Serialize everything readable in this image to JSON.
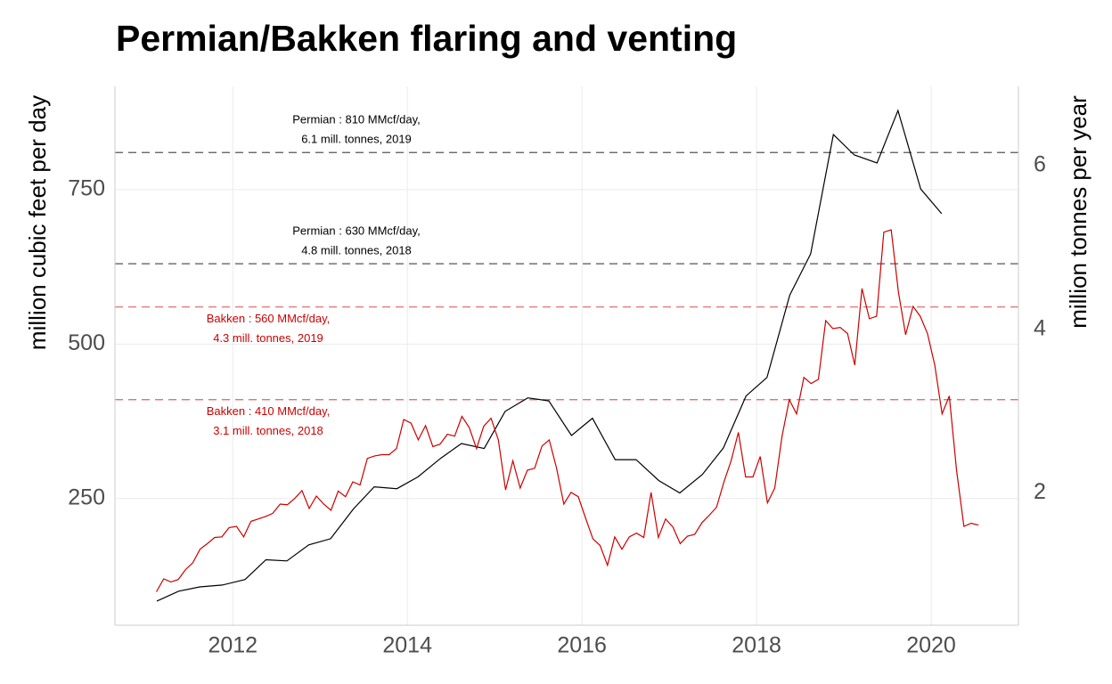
{
  "chart_data": {
    "type": "line",
    "title": "Permian/Bakken flaring and venting",
    "y_label": "million cubic feet per day",
    "y2_label": "million tonnes per year",
    "xlim": [
      2010.65,
      2021.0
    ],
    "xticks": [
      2012,
      2014,
      2016,
      2018,
      2020
    ],
    "ylim": [
      45,
      917
    ],
    "yticks": [
      250,
      500,
      750
    ],
    "y2lim": [
      0.38,
      6.97
    ],
    "y2ticks": [
      2,
      4,
      6
    ],
    "grid": true,
    "hlines": [
      {
        "value": 810,
        "color": "#555555",
        "label": [
          "Permian : 810 MMcf/day,",
          "6.1 mill. tonnes, 2019"
        ]
      },
      {
        "value": 630,
        "color": "#555555",
        "label": [
          "Permian : 630 MMcf/day,",
          "4.8 mill. tonnes, 2018"
        ]
      },
      {
        "value": 560,
        "color": "#e06060",
        "label": [
          "Bakken : 560 MMcf/day,",
          "4.3 mill. tonnes, 2019"
        ]
      },
      {
        "value": 410,
        "color": "#e06060",
        "label": [
          "Bakken : 410 MMcf/day,",
          "3.1 mill. tonnes, 2018"
        ]
      }
    ],
    "series": [
      {
        "color": "#000000",
        "x": [
          2011.13,
          2011.38,
          2011.62,
          2011.88,
          2012.14,
          2012.38,
          2012.62,
          2012.87,
          2013.12,
          2013.38,
          2013.62,
          2013.88,
          2014.12,
          2014.38,
          2014.62,
          2014.88,
          2015.12,
          2015.38,
          2015.62,
          2015.88,
          2016.12,
          2016.38,
          2016.62,
          2016.88,
          2017.12,
          2017.38,
          2017.62,
          2017.88,
          2018.12,
          2018.38,
          2018.62,
          2018.88,
          2019.12,
          2019.38,
          2019.62,
          2019.88,
          2020.12
        ],
        "values": [
          84,
          100,
          107,
          110,
          119,
          151,
          149,
          175,
          185,
          233,
          269,
          266,
          285,
          315,
          339,
          331,
          391,
          413,
          408,
          352,
          380,
          313,
          313,
          279,
          259,
          289,
          332,
          416,
          446,
          579,
          646,
          839,
          806,
          793,
          878,
          751,
          711
        ]
      },
      {
        "color": "#cc0000",
        "x": [
          2011.125,
          2011.208,
          2011.292,
          2011.375,
          2011.458,
          2011.542,
          2011.625,
          2011.708,
          2011.792,
          2011.875,
          2011.958,
          2012.042,
          2012.125,
          2012.208,
          2012.292,
          2012.375,
          2012.458,
          2012.542,
          2012.625,
          2012.708,
          2012.792,
          2012.875,
          2012.958,
          2013.042,
          2013.125,
          2013.208,
          2013.292,
          2013.375,
          2013.458,
          2013.542,
          2013.625,
          2013.708,
          2013.792,
          2013.875,
          2013.958,
          2014.042,
          2014.125,
          2014.208,
          2014.292,
          2014.375,
          2014.458,
          2014.542,
          2014.625,
          2014.708,
          2014.792,
          2014.875,
          2014.958,
          2015.042,
          2015.125,
          2015.208,
          2015.292,
          2015.375,
          2015.458,
          2015.542,
          2015.625,
          2015.708,
          2015.792,
          2015.875,
          2015.958,
          2016.042,
          2016.125,
          2016.208,
          2016.292,
          2016.375,
          2016.458,
          2016.542,
          2016.625,
          2016.708,
          2016.792,
          2016.875,
          2016.958,
          2017.042,
          2017.125,
          2017.208,
          2017.292,
          2017.375,
          2017.458,
          2017.542,
          2017.625,
          2017.708,
          2017.792,
          2017.875,
          2017.958,
          2018.042,
          2018.125,
          2018.208,
          2018.292,
          2018.375,
          2018.458,
          2018.542,
          2018.625,
          2018.708,
          2018.792,
          2018.875,
          2018.958,
          2019.042,
          2019.125,
          2019.208,
          2019.292,
          2019.375,
          2019.458,
          2019.542,
          2019.625,
          2019.708,
          2019.792,
          2019.875,
          2019.958,
          2020.042,
          2020.125,
          2020.208,
          2020.292,
          2020.375,
          2020.458,
          2020.542
        ],
        "values": [
          99,
          120,
          115,
          119,
          135,
          146,
          168,
          177,
          187,
          188,
          203,
          205,
          188,
          213,
          217,
          221,
          226,
          241,
          240,
          250,
          263,
          234,
          254,
          241,
          231,
          262,
          253,
          277,
          272,
          315,
          319,
          321,
          321,
          331,
          378,
          372,
          345,
          368,
          334,
          338,
          354,
          351,
          383,
          365,
          331,
          367,
          380,
          345,
          264,
          311,
          267,
          296,
          299,
          335,
          345,
          300,
          241,
          260,
          253,
          218,
          185,
          174,
          142,
          188,
          168,
          188,
          194,
          187,
          260,
          187,
          217,
          204,
          177,
          189,
          192,
          211,
          223,
          236,
          276,
          311,
          357,
          285,
          285,
          318,
          243,
          267,
          351,
          410,
          387,
          446,
          436,
          443,
          538,
          525,
          527,
          517,
          466,
          590,
          541,
          545,
          681,
          685,
          584,
          515,
          561,
          545,
          517,
          466,
          387,
          416,
          295,
          205,
          210,
          207
        ]
      }
    ]
  }
}
